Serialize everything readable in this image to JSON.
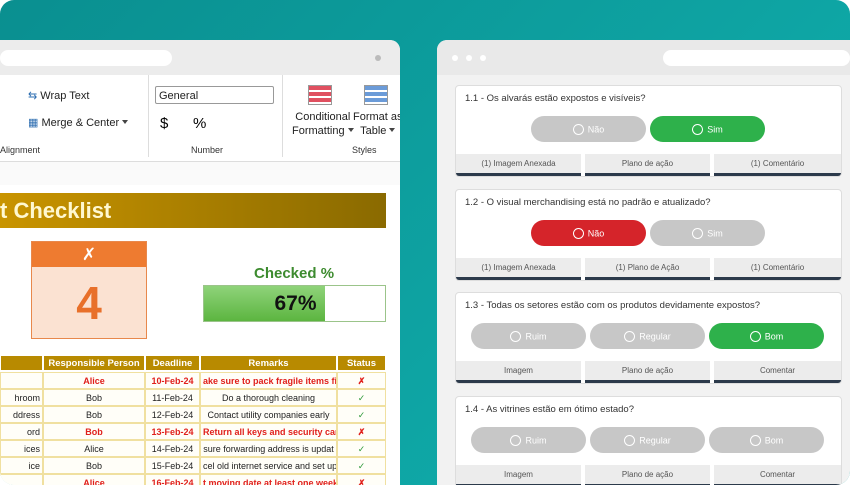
{
  "excel": {
    "ribbon": {
      "wrap_text": "Wrap Text",
      "merge_center": "Merge & Center",
      "alignment": "Alignment",
      "number_format": "General",
      "currency": "$",
      "percent": "%",
      "number": "Number",
      "conditional_formatting": [
        "Conditional",
        "Formatting"
      ],
      "format_as_table": [
        "Format as",
        "Table"
      ],
      "styles": "Styles"
    },
    "sheet": {
      "title": "t Checklist",
      "x_label": "✗",
      "x_count": "4",
      "checked_label": "Checked %",
      "checked": {
        "value": 67,
        "label": "67%"
      },
      "headers": [
        "Responsible Person",
        "Deadline",
        "Remarks",
        "Status"
      ],
      "rows": [
        {
          "person": "Alice",
          "deadline": "10-Feb-24",
          "remarks": "ake sure to pack fragile items fir",
          "status": "✗",
          "flagged": true
        },
        {
          "task": "hroom",
          "person": "Bob",
          "deadline": "11-Feb-24",
          "remarks": "Do a thorough cleaning",
          "status": "✓",
          "flagged": false
        },
        {
          "task": "ddress",
          "person": "Bob",
          "deadline": "12-Feb-24",
          "remarks": "Contact utility companies early",
          "status": "✓",
          "flagged": false
        },
        {
          "task": "ord",
          "person": "Bob",
          "deadline": "13-Feb-24",
          "remarks": "Return all keys and security card",
          "status": "✗",
          "flagged": true
        },
        {
          "task": "ices",
          "person": "Alice",
          "deadline": "14-Feb-24",
          "remarks": "sure forwarding address is updat",
          "status": "✓",
          "flagged": false
        },
        {
          "task": "ice",
          "person": "Bob",
          "deadline": "15-Feb-24",
          "remarks": "cel old internet service and set up",
          "status": "✓",
          "flagged": false
        },
        {
          "person": "Alice",
          "deadline": "16-Feb-24",
          "remarks": "t moving date at least one week",
          "status": "✗",
          "flagged": true
        }
      ]
    }
  },
  "checklist": {
    "items": [
      {
        "question": "1.1 - Os alvarás estão expostos e visíveis?",
        "options": [
          "Não",
          "Sim"
        ],
        "selected": 1,
        "selected_color": "#2eb14b",
        "footer": [
          "(1) Imagem Anexada",
          "Plano de ação",
          "(1) Comentário"
        ]
      },
      {
        "question": "1.2 - O visual merchandising está no padrão e atualizado?",
        "options": [
          "Não",
          "Sim"
        ],
        "selected": 0,
        "selected_color": "#d5242a",
        "footer": [
          "(1) Imagem Anexada",
          "(1) Plano de Ação",
          "(1) Comentário"
        ]
      },
      {
        "question": "1.3 - Todas os setores estão com os produtos devidamente expostos?",
        "options": [
          "Ruim",
          "Regular",
          "Bom"
        ],
        "selected": 2,
        "selected_color": "#2eb14b",
        "footer": [
          "Imagem",
          "Plano de ação",
          "Comentar"
        ]
      },
      {
        "question": "1.4 - As vitrines estão em ótimo estado?",
        "options": [
          "Ruim",
          "Regular",
          "Bom"
        ],
        "footer": [
          "Imagem",
          "Plano de ação",
          "Comentar"
        ]
      }
    ]
  }
}
